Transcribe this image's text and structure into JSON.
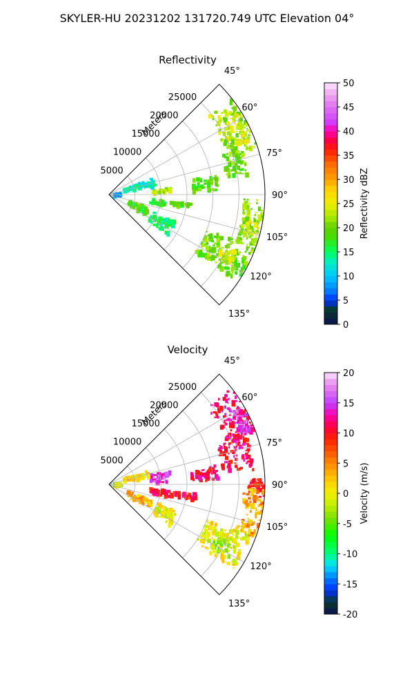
{
  "figure_title": "SKYLER-HU  20231202  131720.749 UTC Elevation 04°",
  "chart_data": [
    {
      "type": "heatmap",
      "subtype": "polar-sector",
      "title": "Reflectivity",
      "radial_axis_label": "Meters",
      "radial_ticks": [
        5000,
        10000,
        15000,
        20000,
        25000
      ],
      "radial_range": [
        0,
        30000
      ],
      "azimuth_range_deg": [
        45,
        135
      ],
      "azimuth_ticks_deg": [
        45,
        60,
        75,
        90,
        105,
        120,
        135
      ],
      "azimuth_tick_labels": [
        "45°",
        "60°",
        "75°",
        "90°",
        "105°",
        "120°",
        "135°"
      ],
      "colorbar": {
        "label": "Reflectivity dBZ",
        "range": [
          0,
          50
        ],
        "ticks": [
          0,
          5,
          10,
          15,
          20,
          25,
          30,
          35,
          40,
          45,
          50
        ],
        "stops": [
          [
            0,
            "#0b1050"
          ],
          [
            3,
            "#0a3a2a"
          ],
          [
            5,
            "#0030ff"
          ],
          [
            7,
            "#0080ff"
          ],
          [
            10,
            "#00c8ff"
          ],
          [
            13,
            "#00f0c0"
          ],
          [
            15,
            "#00ff60"
          ],
          [
            18,
            "#40e000"
          ],
          [
            20,
            "#60d000"
          ],
          [
            22,
            "#a0e800"
          ],
          [
            25,
            "#f0f000"
          ],
          [
            28,
            "#ffd000"
          ],
          [
            30,
            "#ffa000"
          ],
          [
            33,
            "#ff7000"
          ],
          [
            36,
            "#ff2000"
          ],
          [
            38,
            "#ff0040"
          ],
          [
            40,
            "#ff00b0"
          ],
          [
            42,
            "#d040ff"
          ],
          [
            45,
            "#e070f0"
          ],
          [
            48,
            "#f0b0f0"
          ],
          [
            50,
            "#fbe8ff"
          ]
        ]
      },
      "echo_regions": [
        {
          "az_deg": [
            52,
            72
          ],
          "range_m": [
            24000,
            30000
          ],
          "value": 22
        },
        {
          "az_deg": [
            58,
            70
          ],
          "range_m": [
            26500,
            29000
          ],
          "value": 25
        },
        {
          "az_deg": [
            70,
            82
          ],
          "range_m": [
            23000,
            27000
          ],
          "value": 20
        },
        {
          "az_deg": [
            92,
            110
          ],
          "range_m": [
            26000,
            30000
          ],
          "value": 21
        },
        {
          "az_deg": [
            100,
            108
          ],
          "range_m": [
            27000,
            29500
          ],
          "value": 24
        },
        {
          "az_deg": [
            110,
            124
          ],
          "range_m": [
            20000,
            30000
          ],
          "value": 20
        },
        {
          "az_deg": [
            114,
            120
          ],
          "range_m": [
            24000,
            27000
          ],
          "value": 24
        },
        {
          "az_deg": [
            80,
            88
          ],
          "range_m": [
            16000,
            21000
          ],
          "value": 19
        },
        {
          "az_deg": [
            84,
            88
          ],
          "range_m": [
            8500,
            12000
          ],
          "value": 23
        },
        {
          "az_deg": [
            96,
            102
          ],
          "range_m": [
            8000,
            11000
          ],
          "value": 18
        },
        {
          "az_deg": [
            96,
            100
          ],
          "range_m": [
            12000,
            16000
          ],
          "value": 19
        },
        {
          "az_deg": [
            108,
            118
          ],
          "range_m": [
            4000,
            8000
          ],
          "value": 18
        },
        {
          "az_deg": [
            112,
            124
          ],
          "range_m": [
            9000,
            14000
          ],
          "value": 15
        },
        {
          "az_deg": [
            70,
            80
          ],
          "range_m": [
            3000,
            9000
          ],
          "value": 13
        },
        {
          "az_deg": [
            86,
            95
          ],
          "range_m": [
            1000,
            2500
          ],
          "value": 8
        }
      ]
    },
    {
      "type": "heatmap",
      "subtype": "polar-sector",
      "title": "Velocity",
      "radial_axis_label": "Meters",
      "radial_ticks": [
        5000,
        10000,
        15000,
        20000,
        25000
      ],
      "radial_range": [
        0,
        30000
      ],
      "azimuth_range_deg": [
        45,
        135
      ],
      "azimuth_ticks_deg": [
        45,
        60,
        75,
        90,
        105,
        120,
        135
      ],
      "azimuth_tick_labels": [
        "45°",
        "60°",
        "75°",
        "90°",
        "105°",
        "120°",
        "135°"
      ],
      "colorbar": {
        "label": "Velocity (m/s)",
        "range": [
          -20,
          20
        ],
        "ticks": [
          -20,
          -15,
          -10,
          -5,
          0,
          5,
          10,
          15,
          20
        ],
        "stops": [
          [
            -20,
            "#0b1050"
          ],
          [
            -18,
            "#0a3a2a"
          ],
          [
            -16,
            "#0030ff"
          ],
          [
            -14,
            "#0080ff"
          ],
          [
            -12,
            "#00e0ff"
          ],
          [
            -10,
            "#00ff80"
          ],
          [
            -7,
            "#00ff00"
          ],
          [
            -4,
            "#80e000"
          ],
          [
            -2,
            "#c0f000"
          ],
          [
            0,
            "#f0f000"
          ],
          [
            2,
            "#ffd000"
          ],
          [
            4,
            "#ffa000"
          ],
          [
            6,
            "#ff7000"
          ],
          [
            9,
            "#ff2000"
          ],
          [
            11,
            "#ff0040"
          ],
          [
            13,
            "#ff00b0"
          ],
          [
            15,
            "#c040ff"
          ],
          [
            17,
            "#e070f0"
          ],
          [
            19,
            "#f0b0f0"
          ],
          [
            20,
            "#fbe8ff"
          ]
        ]
      },
      "echo_regions": [
        {
          "az_deg": [
            52,
            70
          ],
          "range_m": [
            24000,
            30000
          ],
          "value": 12
        },
        {
          "az_deg": [
            60,
            70
          ],
          "range_m": [
            27000,
            30000
          ],
          "value": 15
        },
        {
          "az_deg": [
            70,
            84
          ],
          "range_m": [
            22000,
            28000
          ],
          "value": 11
        },
        {
          "az_deg": [
            88,
            95
          ],
          "range_m": [
            27000,
            30000
          ],
          "value": 10
        },
        {
          "az_deg": [
            92,
            110
          ],
          "range_m": [
            26000,
            30000
          ],
          "value": 4
        },
        {
          "az_deg": [
            110,
            124
          ],
          "range_m": [
            20000,
            29000
          ],
          "value": 0
        },
        {
          "az_deg": [
            115,
            122
          ],
          "range_m": [
            23000,
            27000
          ],
          "value": -3
        },
        {
          "az_deg": [
            78,
            88
          ],
          "range_m": [
            8000,
            12000
          ],
          "value": 15
        },
        {
          "az_deg": [
            80,
            88
          ],
          "range_m": [
            16000,
            21000
          ],
          "value": 11
        },
        {
          "az_deg": [
            96,
            102
          ],
          "range_m": [
            8000,
            12000
          ],
          "value": 10
        },
        {
          "az_deg": [
            96,
            100
          ],
          "range_m": [
            12000,
            17000
          ],
          "value": 10
        },
        {
          "az_deg": [
            110,
            120
          ],
          "range_m": [
            4000,
            9000
          ],
          "value": 3
        },
        {
          "az_deg": [
            112,
            124
          ],
          "range_m": [
            10000,
            14000
          ],
          "value": 0
        },
        {
          "az_deg": [
            70,
            80
          ],
          "range_m": [
            3000,
            8000
          ],
          "value": 1
        },
        {
          "az_deg": [
            86,
            95
          ],
          "range_m": [
            1000,
            2500
          ],
          "value": -1
        }
      ]
    }
  ]
}
